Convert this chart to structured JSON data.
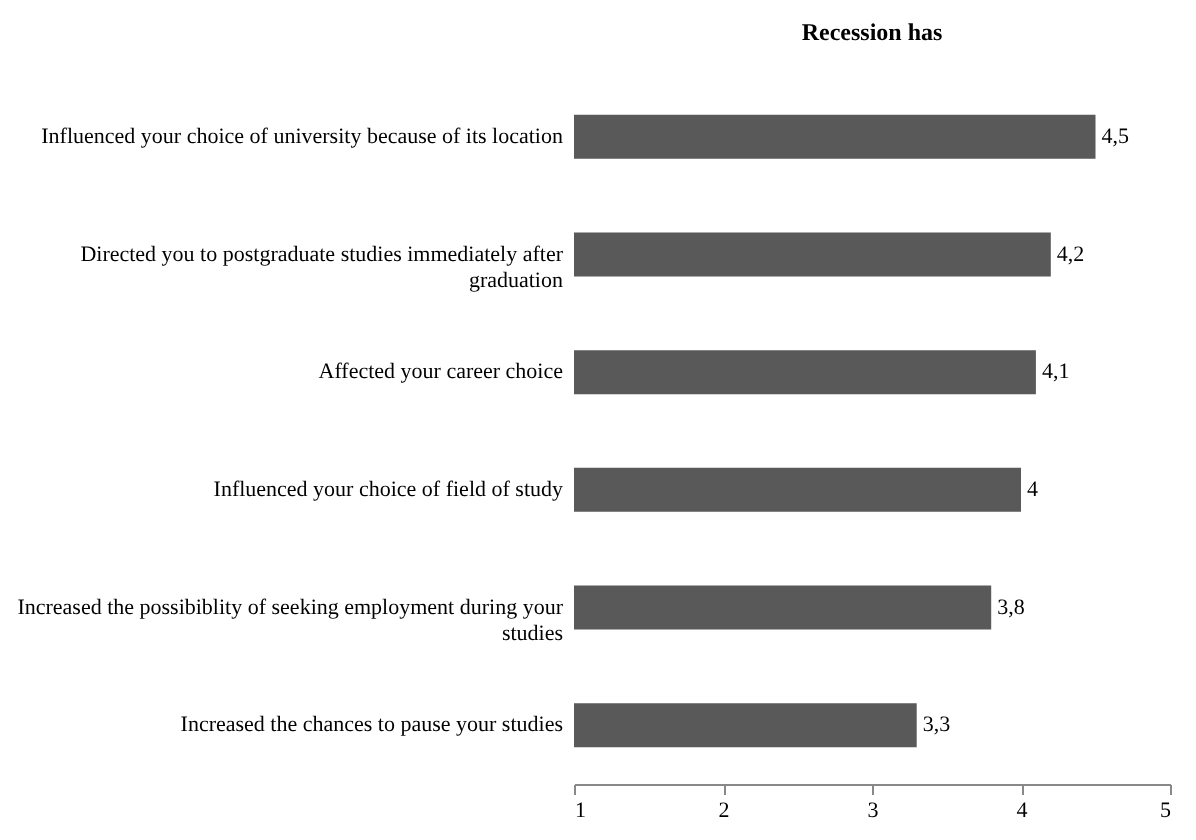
{
  "chart_data": {
    "type": "bar",
    "orientation": "horizontal",
    "title": "Recession has",
    "categories": [
      "Influenced your choice of university because of its location",
      "Directed you to postgraduate studies immediately after graduation",
      "Affected your career choice",
      "Influenced your choice of field of study",
      "Increased the possibiblity of seeking employment during your studies",
      "Increased the chances to pause your studies"
    ],
    "values": [
      4.5,
      4.2,
      4.1,
      4,
      3.8,
      3.3
    ],
    "value_labels": [
      "4,5",
      "4,2",
      "4,1",
      "4",
      "3,8",
      "3,3"
    ],
    "color": "#595959",
    "xlim": [
      1,
      5
    ],
    "xticks": [
      1,
      2,
      3,
      4,
      5
    ],
    "grid": false
  }
}
